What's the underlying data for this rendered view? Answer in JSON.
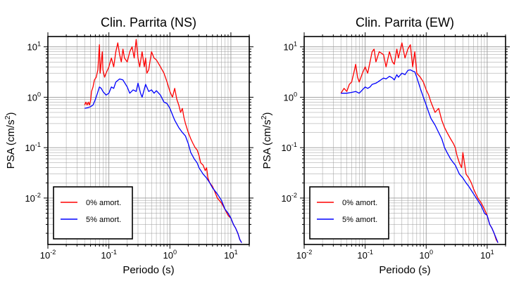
{
  "chart_data": [
    {
      "type": "line",
      "title": "Clin. Parrita (NS)",
      "xlabel": "Periodo (s)",
      "ylabel_main": "PSA (cm/s",
      "ylabel_sup": "2",
      "ylabel_close": ")",
      "x_scale": "log",
      "y_scale": "log",
      "xlim": [
        0.01,
        20
      ],
      "ylim": [
        0.0012,
        16
      ],
      "grid": true,
      "legend_position": "bottom-left",
      "x_ticks": [
        {
          "value": 0.01,
          "base": "10",
          "exp": "-2"
        },
        {
          "value": 0.1,
          "base": "10",
          "exp": "-1"
        },
        {
          "value": 1,
          "base": "10",
          "exp": "0"
        },
        {
          "value": 10,
          "base": "10",
          "exp": "1"
        }
      ],
      "y_ticks": [
        {
          "value": 0.01,
          "base": "10",
          "exp": "-2"
        },
        {
          "value": 0.1,
          "base": "10",
          "exp": "-1"
        },
        {
          "value": 1,
          "base": "10",
          "exp": "0"
        },
        {
          "value": 10,
          "base": "10",
          "exp": "1"
        }
      ],
      "series": [
        {
          "name": "0% amort.",
          "color": "#ff0000",
          "x": [
            0.04,
            0.042,
            0.044,
            0.046,
            0.048,
            0.05,
            0.052,
            0.055,
            0.058,
            0.062,
            0.066,
            0.07,
            0.072,
            0.075,
            0.078,
            0.08,
            0.085,
            0.09,
            0.1,
            0.11,
            0.12,
            0.13,
            0.14,
            0.15,
            0.16,
            0.17,
            0.18,
            0.2,
            0.22,
            0.24,
            0.26,
            0.28,
            0.3,
            0.32,
            0.35,
            0.38,
            0.4,
            0.42,
            0.45,
            0.5,
            0.55,
            0.6,
            0.7,
            0.8,
            0.9,
            1.0,
            1.1,
            1.2,
            1.3,
            1.4,
            1.5,
            1.6,
            1.7,
            1.8,
            2.0,
            2.2,
            2.4,
            2.6,
            2.8,
            3.0,
            3.2,
            3.5,
            3.8,
            4.0,
            4.2,
            4.5,
            5.0,
            5.5,
            6.0,
            7.0,
            8.0,
            9.0,
            10.0,
            11.0,
            12.0,
            13.0,
            14.0,
            15.0
          ],
          "y": [
            0.7,
            0.8,
            0.7,
            0.8,
            0.7,
            0.85,
            1.3,
            1.6,
            2.2,
            2.5,
            3.5,
            11.0,
            3.0,
            5.0,
            8.0,
            3.5,
            2.5,
            3.0,
            4.0,
            6.0,
            4.0,
            8.0,
            12.0,
            7.0,
            5.0,
            9.0,
            6.0,
            5.0,
            8.0,
            10.0,
            6.0,
            14.0,
            6.0,
            4.0,
            8.0,
            4.0,
            6.0,
            3.0,
            3.5,
            8.0,
            6.0,
            5.5,
            4.0,
            3.0,
            2.0,
            1.3,
            1.0,
            1.5,
            0.9,
            0.7,
            0.5,
            0.6,
            0.4,
            0.3,
            0.2,
            0.15,
            0.12,
            0.1,
            0.09,
            0.07,
            0.05,
            0.045,
            0.035,
            0.04,
            0.025,
            0.02,
            0.017,
            0.013,
            0.01,
            0.008,
            0.006,
            0.0045,
            0.004,
            0.003,
            0.0025,
            0.002,
            0.0015,
            0.0013
          ]
        },
        {
          "name": "5% amort.",
          "color": "#0000ff",
          "x": [
            0.04,
            0.045,
            0.05,
            0.055,
            0.06,
            0.065,
            0.07,
            0.075,
            0.08,
            0.09,
            0.1,
            0.11,
            0.12,
            0.13,
            0.15,
            0.17,
            0.2,
            0.22,
            0.25,
            0.28,
            0.3,
            0.33,
            0.35,
            0.4,
            0.45,
            0.5,
            0.55,
            0.6,
            0.7,
            0.8,
            0.9,
            1.0,
            1.1,
            1.2,
            1.4,
            1.6,
            1.8,
            2.0,
            2.2,
            2.5,
            2.8,
            3.0,
            3.5,
            4.0,
            4.5,
            5.0,
            6.0,
            7.0,
            8.0,
            9.0,
            10.0,
            11.0,
            12.0,
            13.0,
            14.0,
            15.0
          ],
          "y": [
            0.6,
            0.62,
            0.65,
            0.7,
            0.9,
            1.2,
            1.6,
            1.5,
            1.3,
            1.1,
            1.2,
            1.6,
            1.5,
            2.0,
            2.3,
            2.2,
            1.6,
            1.2,
            1.4,
            1.3,
            1.9,
            1.2,
            1.0,
            1.8,
            1.3,
            1.4,
            1.2,
            1.35,
            1.1,
            0.8,
            0.75,
            0.6,
            0.45,
            0.35,
            0.25,
            0.2,
            0.17,
            0.12,
            0.08,
            0.06,
            0.05,
            0.04,
            0.03,
            0.025,
            0.02,
            0.016,
            0.012,
            0.009,
            0.006,
            0.005,
            0.004,
            0.003,
            0.0025,
            0.002,
            0.0015,
            0.0013
          ]
        }
      ]
    },
    {
      "type": "line",
      "title": "Clin. Parrita (EW)",
      "xlabel": "Periodo (s)",
      "ylabel_main": "PSA (cm/s",
      "ylabel_sup": "2",
      "ylabel_close": ")",
      "x_scale": "log",
      "y_scale": "log",
      "xlim": [
        0.01,
        20
      ],
      "ylim": [
        0.0012,
        16
      ],
      "grid": true,
      "legend_position": "bottom-left",
      "x_ticks": [
        {
          "value": 0.01,
          "base": "10",
          "exp": "-2"
        },
        {
          "value": 0.1,
          "base": "10",
          "exp": "-1"
        },
        {
          "value": 1,
          "base": "10",
          "exp": "0"
        },
        {
          "value": 10,
          "base": "10",
          "exp": "1"
        }
      ],
      "y_ticks": [
        {
          "value": 0.01,
          "base": "10",
          "exp": "-2"
        },
        {
          "value": 0.1,
          "base": "10",
          "exp": "-1"
        },
        {
          "value": 1,
          "base": "10",
          "exp": "0"
        },
        {
          "value": 10,
          "base": "10",
          "exp": "1"
        }
      ],
      "series": [
        {
          "name": "0% amort.",
          "color": "#ff0000",
          "x": [
            0.04,
            0.045,
            0.05,
            0.055,
            0.06,
            0.065,
            0.07,
            0.075,
            0.08,
            0.09,
            0.1,
            0.11,
            0.12,
            0.13,
            0.14,
            0.15,
            0.17,
            0.2,
            0.22,
            0.25,
            0.28,
            0.3,
            0.33,
            0.35,
            0.4,
            0.45,
            0.5,
            0.55,
            0.6,
            0.65,
            0.7,
            0.8,
            0.9,
            1.0,
            1.1,
            1.2,
            1.4,
            1.6,
            1.8,
            2.0,
            2.2,
            2.5,
            2.8,
            3.0,
            3.2,
            3.5,
            3.8,
            4.0,
            4.5,
            5.0,
            5.5,
            6.0,
            7.0,
            8.0,
            9.0,
            10.0,
            11.0,
            12.0,
            13.0,
            14.0,
            15.0
          ],
          "y": [
            1.2,
            1.5,
            1.3,
            1.8,
            2.0,
            3.0,
            4.5,
            2.5,
            2.0,
            3.0,
            4.0,
            3.0,
            5.0,
            8.0,
            9.0,
            5.0,
            8.0,
            7.0,
            4.0,
            8.0,
            5.0,
            4.5,
            9.0,
            6.0,
            12.0,
            6.0,
            9.0,
            11.0,
            4.0,
            8.0,
            3.0,
            2.5,
            2.0,
            1.4,
            1.1,
            0.8,
            0.5,
            0.6,
            0.35,
            0.25,
            0.2,
            0.15,
            0.12,
            0.1,
            0.07,
            0.05,
            0.04,
            0.08,
            0.03,
            0.025,
            0.02,
            0.015,
            0.01,
            0.008,
            0.006,
            0.0045,
            0.003,
            0.0025,
            0.002,
            0.0015,
            0.0013
          ]
        },
        {
          "name": "5% amort.",
          "color": "#0000ff",
          "x": [
            0.04,
            0.05,
            0.06,
            0.07,
            0.08,
            0.09,
            0.1,
            0.11,
            0.12,
            0.13,
            0.15,
            0.17,
            0.2,
            0.22,
            0.25,
            0.28,
            0.3,
            0.33,
            0.35,
            0.4,
            0.45,
            0.5,
            0.55,
            0.6,
            0.65,
            0.7,
            0.8,
            0.9,
            1.0,
            1.1,
            1.2,
            1.4,
            1.6,
            1.8,
            2.0,
            2.2,
            2.5,
            2.8,
            3.0,
            3.5,
            4.0,
            4.5,
            5.0,
            6.0,
            7.0,
            8.0,
            9.0,
            10.0,
            11.0,
            12.0,
            13.0,
            14.0,
            15.0
          ],
          "y": [
            1.2,
            1.2,
            1.25,
            1.3,
            1.2,
            1.4,
            1.6,
            1.5,
            1.6,
            1.8,
            1.9,
            2.1,
            2.4,
            2.3,
            2.6,
            2.4,
            2.2,
            2.8,
            2.5,
            3.0,
            2.8,
            3.4,
            3.5,
            3.3,
            3.2,
            2.5,
            1.5,
            1.0,
            0.7,
            0.5,
            0.38,
            0.28,
            0.2,
            0.15,
            0.1,
            0.08,
            0.06,
            0.05,
            0.045,
            0.03,
            0.025,
            0.02,
            0.017,
            0.012,
            0.009,
            0.007,
            0.005,
            0.0045,
            0.003,
            0.0025,
            0.002,
            0.0016,
            0.0013
          ]
        }
      ]
    }
  ]
}
